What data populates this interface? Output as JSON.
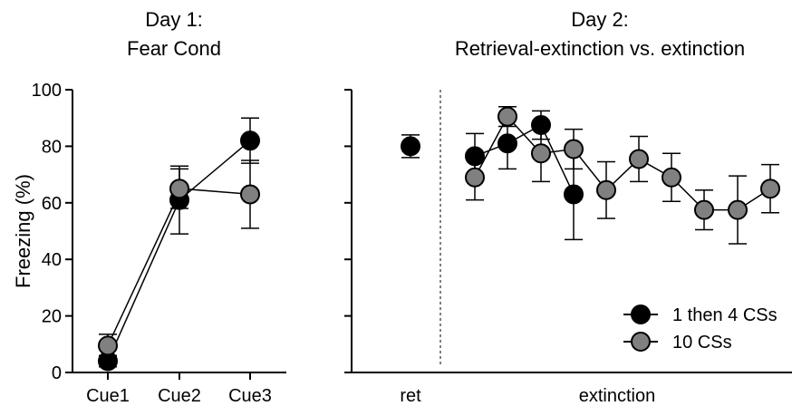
{
  "chart_data": [
    {
      "type": "line",
      "title": "Day 1:",
      "subtitle": "Fear Cond",
      "ylabel": "Freezing (%)",
      "ylim": [
        0,
        100
      ],
      "yticks": [
        "0",
        "20",
        "40",
        "60",
        "80",
        "100"
      ],
      "categories": [
        "Cue1",
        "Cue2",
        "Cue3"
      ],
      "series": [
        {
          "name": "1 then 4 CSs",
          "color": "#000000",
          "values": [
            4,
            61,
            82
          ],
          "err": [
            2,
            12,
            8
          ]
        },
        {
          "name": "10 CSs",
          "color": "#808080",
          "values": [
            9.5,
            65,
            63
          ],
          "err": [
            4,
            7,
            12
          ]
        }
      ]
    },
    {
      "type": "line",
      "title": "Day 2:",
      "subtitle": "Retrieval-extinction vs. extinction",
      "ylim": [
        0,
        100
      ],
      "xlabels": [
        "ret",
        "extinction"
      ],
      "ret_point": {
        "series": "1 then 4 CSs",
        "value": 80,
        "err": 4
      },
      "series": [
        {
          "name": "1 then 4 CSs",
          "color": "#000000",
          "values": [
            76.5,
            81,
            87.5,
            63
          ],
          "err": [
            8,
            9,
            5,
            16
          ]
        },
        {
          "name": "10 CSs",
          "color": "#808080",
          "values": [
            69,
            90.5,
            77.5,
            79,
            64.5,
            75.5,
            69,
            57.5,
            57.5,
            65
          ],
          "err": [
            8,
            3.5,
            10,
            7,
            10,
            8,
            8.5,
            7,
            12,
            8.5
          ]
        }
      ],
      "legend_position": "bottom-right",
      "legend": [
        "1 then 4 CSs",
        "10 CSs"
      ]
    }
  ]
}
